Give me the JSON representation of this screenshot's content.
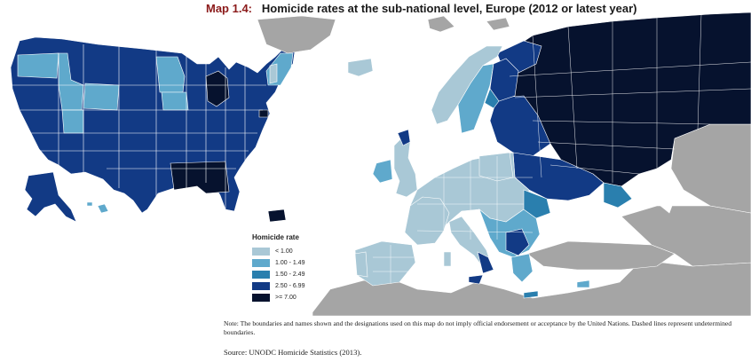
{
  "title": {
    "number": "Map 1.4:",
    "text": "Homicide rates at the sub-national level, Europe (2012 or latest year)"
  },
  "legend": {
    "title": "Homicide rate",
    "items": [
      {
        "label": "< 1.00",
        "color": "#a9c8d6"
      },
      {
        "label": "1.00 - 1.49",
        "color": "#5fa9cc"
      },
      {
        "label": "1.50 - 2.49",
        "color": "#2a7fae"
      },
      {
        "label": "2.50 - 6.99",
        "color": "#123a85"
      },
      {
        "label": ">= 7.00",
        "color": "#06122e"
      }
    ]
  },
  "colors": {
    "no_data": "#a5a5a5",
    "water": "#ffffff",
    "border": "#ffffff"
  },
  "note": "Note: The boundaries and names shown and the designations used on this map do not imply official endorsement or acceptance by the United Nations. Dashed lines represent undetermined boundaries.",
  "source": "Source: UNODC Homicide Statistics (2013)."
}
